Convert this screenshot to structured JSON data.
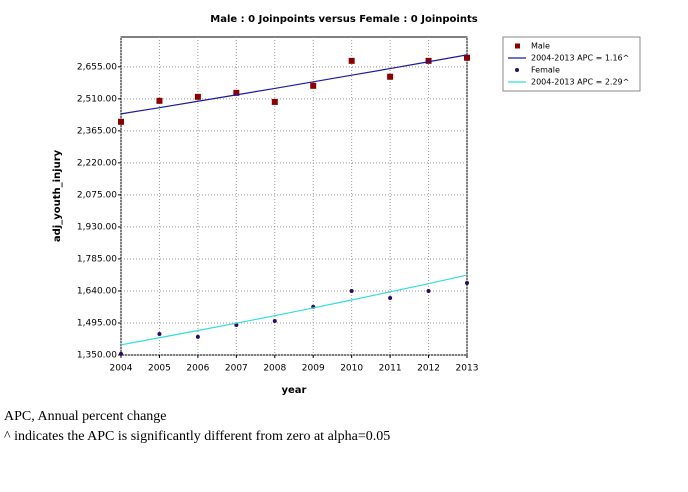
{
  "chart_data": {
    "type": "line",
    "title": "Male : 0 Joinpoints  versus  Female : 0 Joinpoints",
    "x_label": "year",
    "y_label": "adj_youth_injury",
    "x": [
      2004,
      2005,
      2006,
      2007,
      2008,
      2009,
      2010,
      2011,
      2012,
      2013
    ],
    "xlim": [
      2004,
      2013
    ],
    "xticks": [
      2004,
      2005,
      2006,
      2007,
      2008,
      2009,
      2010,
      2011,
      2012,
      2013
    ],
    "ylim": [
      1350,
      2790
    ],
    "yticks": [
      {
        "value": 1350,
        "label": "1,350.00"
      },
      {
        "value": 1495,
        "label": "1,495.00"
      },
      {
        "value": 1640,
        "label": "1,640.00"
      },
      {
        "value": 1785,
        "label": "1,785.00"
      },
      {
        "value": 1930,
        "label": "1,930.00"
      },
      {
        "value": 2075,
        "label": "2,075.00"
      },
      {
        "value": 2220,
        "label": "2,220.00"
      },
      {
        "value": 2365,
        "label": "2,365.00"
      },
      {
        "value": 2510,
        "label": "2,510.00"
      },
      {
        "value": 2655,
        "label": "2,655.00"
      }
    ],
    "grid": true,
    "legend": "outside-right",
    "series": [
      {
        "name": "Male",
        "color": "#8b0000",
        "style": "square",
        "values": [
          2406,
          2501,
          2519,
          2537,
          2496,
          2569,
          2682,
          2610,
          2682,
          2696
        ]
      },
      {
        "name": "2004-2013 APC  = 1.16^",
        "color": "#1a1aa0",
        "style": "line",
        "values": [
          2442,
          2470,
          2499,
          2528,
          2557,
          2587,
          2617,
          2647,
          2678,
          2709
        ]
      },
      {
        "name": "Female",
        "color": "#2a0a6a",
        "style": "dot",
        "values": [
          1355,
          1445,
          1432,
          1486,
          1504,
          1568,
          1640,
          1608,
          1640,
          1676
        ]
      },
      {
        "name": "2004-2013 APC  = 2.29^",
        "color": "#33dddd",
        "style": "line",
        "values": [
          1396,
          1428,
          1461,
          1494,
          1528,
          1563,
          1599,
          1636,
          1673,
          1712
        ]
      }
    ],
    "notes": [
      "APC, Annual percent change",
      "^ indicates the APC is significantly different from zero at alpha=0.05"
    ]
  }
}
